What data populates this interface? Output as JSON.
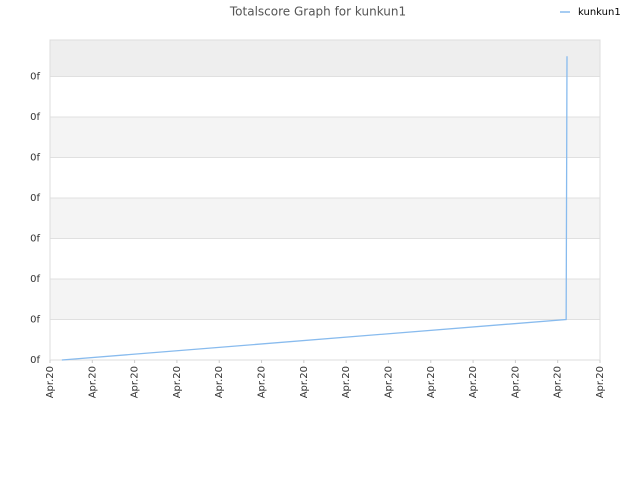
{
  "chart_data": {
    "type": "line",
    "title": "Totalscore Graph for kunkun1",
    "x": [
      0.28,
      12.2,
      12.22
    ],
    "series": [
      {
        "name": "kunkun1",
        "color": "#88bbee",
        "values": [
          0,
          1,
          7.5
        ]
      }
    ],
    "xlim": [
      0,
      13
    ],
    "xticks": [
      {
        "value": 0,
        "label": "Apr.20"
      },
      {
        "value": 1,
        "label": "Apr.20"
      },
      {
        "value": 2,
        "label": "Apr.20"
      },
      {
        "value": 3,
        "label": "Apr.20"
      },
      {
        "value": 4,
        "label": "Apr.20"
      },
      {
        "value": 5,
        "label": "Apr.20"
      },
      {
        "value": 6,
        "label": "Apr.20"
      },
      {
        "value": 7,
        "label": "Apr.20"
      },
      {
        "value": 8,
        "label": "Apr.20"
      },
      {
        "value": 9,
        "label": "Apr.20"
      },
      {
        "value": 10,
        "label": "Apr.20"
      },
      {
        "value": 11,
        "label": "Apr.20"
      },
      {
        "value": 12,
        "label": "Apr.20"
      },
      {
        "value": 13,
        "label": "Apr.20"
      }
    ],
    "ylim": [
      0,
      7.9
    ],
    "yticks": [
      {
        "value": 0,
        "label": "0f"
      },
      {
        "value": 1,
        "label": "0f"
      },
      {
        "value": 2,
        "label": "0f"
      },
      {
        "value": 3,
        "label": "0f"
      },
      {
        "value": 4,
        "label": "0f"
      },
      {
        "value": 5,
        "label": "0f"
      },
      {
        "value": 6,
        "label": "0f"
      },
      {
        "value": 7,
        "label": "0f"
      }
    ],
    "grid": true,
    "legend": "top-right"
  }
}
